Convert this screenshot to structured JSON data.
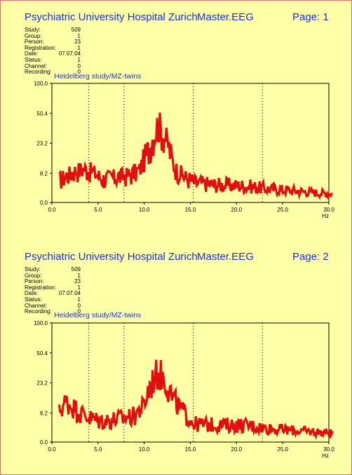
{
  "pages": [
    {
      "header": {
        "title": "Psychiatric University Hospital Zurich",
        "file": "Master.EEG",
        "page_label": "Page: 1"
      },
      "meta": [
        {
          "label": "Study:",
          "value": "509"
        },
        {
          "label": "Group:",
          "value": "1"
        },
        {
          "label": "Person:",
          "value": "23"
        },
        {
          "label": "Registration:",
          "value": "1"
        },
        {
          "label": "Date:",
          "value": "07.07.04"
        },
        {
          "label": "Status:",
          "value": "1"
        },
        {
          "label": "Channel:",
          "value": "0"
        },
        {
          "label": "Recording:",
          "value": "0"
        }
      ],
      "chart_title": "Heidelberg study/MZ-twins"
    },
    {
      "header": {
        "title": "Psychiatric University Hospital Zurich",
        "file": "Master.EEG",
        "page_label": "Page: 2"
      },
      "meta": [
        {
          "label": "Study:",
          "value": "509"
        },
        {
          "label": "Group:",
          "value": "1"
        },
        {
          "label": "Person:",
          "value": "23"
        },
        {
          "label": "Registration:",
          "value": "1"
        },
        {
          "label": "Date:",
          "value": "07.07.04"
        },
        {
          "label": "Status:",
          "value": "1"
        },
        {
          "label": "Channel:",
          "value": "0"
        },
        {
          "label": "Recording:",
          "value": "0"
        }
      ],
      "chart_title": "Heidelberg study/MZ-twins"
    }
  ],
  "chart_data": [
    {
      "type": "line",
      "title": "Heidelberg study/MZ-twins",
      "xlabel": "Hz",
      "ylabel": "",
      "xlim": [
        0,
        30
      ],
      "y_ticks": [
        "0.0",
        "8.2",
        "23.2",
        "50.4",
        "100.0"
      ],
      "y_scale": "nonlinear (sqrt-like)",
      "x_ticks": [
        "0.0",
        "5.0",
        "10.0",
        "15.0",
        "20.0",
        "25.0",
        "30.0"
      ],
      "marker_lines_hz": [
        4.0,
        7.8,
        15.3,
        22.8
      ],
      "color": "#e01010",
      "x": [
        0.8,
        1.5,
        2.5,
        3.5,
        4.5,
        5.5,
        6.5,
        7.5,
        8.5,
        9.5,
        10.5,
        11.0,
        11.5,
        12.0,
        12.5,
        13.0,
        13.5,
        14.5,
        15.5,
        17.5,
        19.5,
        21.5,
        23.5,
        25.5,
        27.5,
        29.5,
        30.5
      ],
      "y": [
        6,
        7.5,
        9.5,
        10.5,
        9,
        6.5,
        7,
        7.5,
        8,
        10,
        20,
        30,
        40,
        32,
        25,
        15,
        10,
        7,
        5.5,
        5,
        4.8,
        4.5,
        3.8,
        3.5,
        3,
        2.6,
        2.5
      ]
    },
    {
      "type": "line",
      "title": "Heidelberg study/MZ-twins",
      "xlabel": "Hz",
      "ylabel": "",
      "xlim": [
        0,
        30
      ],
      "y_ticks": [
        "0.0",
        "8.2",
        "23.2",
        "50.4",
        "100.0"
      ],
      "y_scale": "nonlinear (sqrt-like)",
      "x_ticks": [
        "0.0",
        "5.0",
        "10.0",
        "15.0",
        "20.0",
        "25.0",
        "30.0"
      ],
      "marker_lines_hz": [
        4.0,
        7.8,
        15.3,
        22.8
      ],
      "color": "#e01010",
      "x": [
        0.8,
        1.5,
        2.0,
        2.5,
        3.0,
        4.0,
        5.0,
        6.0,
        7.0,
        8.0,
        9.0,
        10.0,
        10.5,
        11.0,
        11.5,
        12.0,
        12.5,
        13.0,
        14.0,
        15.0,
        15.5,
        17.5,
        19.5,
        21.5,
        23.5,
        25.5,
        27.5,
        29.5,
        30.5
      ],
      "y": [
        9,
        14,
        12,
        11,
        9,
        7,
        6,
        6,
        6.5,
        7,
        8,
        12,
        20,
        28,
        33,
        30,
        25,
        16,
        10,
        6.5,
        5,
        4.8,
        4.8,
        4.6,
        3.8,
        3.4,
        3,
        2.7,
        2.5
      ]
    }
  ]
}
